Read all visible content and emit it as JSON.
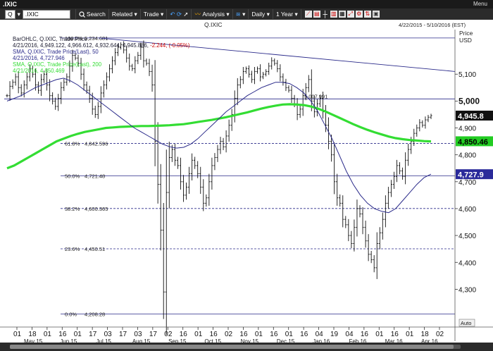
{
  "window": {
    "title": ".IXIC",
    "menu_label": "Menu"
  },
  "toolbar": {
    "symbol_prefix": "Q",
    "symbol_value": ".IXIC",
    "search_label": "Search",
    "related_label": "Related",
    "trade_label": "Trade",
    "analysis_label": "Analysis",
    "interval_label": "Daily",
    "range_label": "1 Year"
  },
  "chart": {
    "symbol_title": "Q.IXIC",
    "date_range": "4/22/2015 - 5/10/2016 (EST)",
    "price_header": "Price",
    "currency": "USD",
    "auto_label": "Auto",
    "legend": [
      {
        "text": "BarOHLC, Q.IXIC, Trade Price",
        "color": "#1a1a2e"
      },
      {
        "text": "4/21/2016, 4,949.122, 4,966.612, 4,932.644, 4,945.886, ",
        "color": "#1a1a2e",
        "change": "-2.244, (-0.05%)",
        "change_color": "#cc0000"
      },
      {
        "text": "SMA, Q.IXIC, Trade Price(Last), 50",
        "color": "#2a2a8a"
      },
      {
        "text": "4/21/2016, 4,727.946",
        "color": "#2a2a8a"
      },
      {
        "text": "SMA, Q.IXIC, Trade Price(Last), 200",
        "color": "#33dd33"
      },
      {
        "text": "4/21/2016, 4,850.469",
        "color": "#33dd33"
      }
    ],
    "fib_levels": [
      {
        "label": "100.0%",
        "price_text": "5,234.681",
        "price": 5234.681,
        "style": "solid"
      },
      {
        "label": "61.8%",
        "price_text": "4,842.596",
        "price": 4842.596,
        "style": "dashed"
      },
      {
        "label": "50.0%",
        "price_text": "4,721.48",
        "price": 4721.48,
        "style": "solid"
      },
      {
        "label": "38.2%",
        "price_text": "4,600.365",
        "price": 4600.365,
        "style": "dashed"
      },
      {
        "label": "23.6%",
        "price_text": "4,450.51",
        "price": 4450.51,
        "style": "dashed"
      },
      {
        "label": "0.0%",
        "price_text": "4,208.28",
        "price": 4208.28,
        "style": "solid"
      }
    ],
    "level_5000": {
      "price_text": "5,007.991",
      "price": 5007.991
    },
    "y_ticks": [
      {
        "label": "5,100",
        "value": 5100
      },
      {
        "label": "5,000",
        "value": 5000,
        "bold": true
      },
      {
        "label": "4,900",
        "value": 4900
      },
      {
        "label": "4,800",
        "value": 4800
      },
      {
        "label": "4,700",
        "value": 4700
      },
      {
        "label": "4,600",
        "value": 4600
      },
      {
        "label": "4,500",
        "value": 4500
      },
      {
        "label": "4,400",
        "value": 4400
      },
      {
        "label": "4,300",
        "value": 4300
      }
    ],
    "price_badges": [
      {
        "text": "4,945.8",
        "value": 4945.886,
        "bg": "#111111",
        "fg": "#ffffff"
      },
      {
        "text": "4,850.46",
        "value": 4850.469,
        "bg": "#22cc22",
        "fg": "#000000"
      },
      {
        "text": "4,727.9",
        "value": 4727.946,
        "bg": "#2a2a9a",
        "fg": "#ffffff"
      }
    ],
    "x_day_ticks": [
      "01",
      "18",
      "01",
      "16",
      "01",
      "17",
      "03",
      "17",
      "03",
      "17",
      "02",
      "16",
      "01",
      "16",
      "02",
      "16",
      "01",
      "16",
      "01",
      "16",
      "04",
      "19",
      "04",
      "16",
      "01",
      "16",
      "01",
      "18",
      "02"
    ],
    "x_month_labels": [
      "May 15",
      "Jun 15",
      "Jul 15",
      "Aug 15",
      "Sep 15",
      "Oct 15",
      "Nov 15",
      "Dec 15",
      "Jan 16",
      "Feb 16",
      "Mar 16",
      "Apr 16"
    ],
    "colors": {
      "bars": "#111111",
      "sma50": "#2a2a8a",
      "sma200": "#33dd33",
      "trendline": "#2a2a8a",
      "fib": "#2a2a8a"
    }
  },
  "chart_data": {
    "type": "bar",
    "title": "Q.IXIC",
    "series_names": [
      "BarOHLC, Q.IXIC, Trade Price",
      "SMA 50",
      "SMA 200"
    ],
    "ylim": [
      4170,
      5250
    ],
    "last_bar": {
      "date": "4/21/2016",
      "open": 4949.122,
      "high": 4966.612,
      "low": 4932.644,
      "close": 4945.886
    },
    "sma50_last": 4727.946,
    "sma200_last": 4850.469,
    "closes": [
      5020,
      5055,
      5070,
      5090,
      5050,
      5030,
      5060,
      5090,
      5120,
      5100,
      5060,
      5040,
      5080,
      5100,
      5060,
      5020,
      5000,
      4980,
      5010,
      5050,
      5070,
      5090,
      5130,
      5170,
      5160,
      5140,
      5100,
      5060,
      5040,
      5010,
      4970,
      4950,
      4980,
      5030,
      5060,
      5090,
      5120,
      5150,
      5180,
      5200,
      5210,
      5190,
      5160,
      5130,
      5120,
      5150,
      5170,
      5200,
      5150,
      5140,
      5110,
      5060,
      4850,
      4690,
      4520,
      4290,
      4660,
      4790,
      4820,
      4780,
      4760,
      4700,
      4650,
      4680,
      4730,
      4780,
      4760,
      4730,
      4680,
      4620,
      4640,
      4700,
      4760,
      4790,
      4820,
      4850,
      4830,
      4870,
      4910,
      4950,
      5010,
      5060,
      5080,
      5110,
      5120,
      5100,
      5080,
      5110,
      5120,
      5090,
      5100,
      5110,
      5130,
      5150,
      5140,
      5120,
      5090,
      5070,
      5050,
      5040,
      5010,
      4990,
      4950,
      4970,
      5020,
      5050,
      5080,
      5000,
      4960,
      4990,
      5010,
      4960,
      4910,
      4850,
      4800,
      4700,
      4640,
      4620,
      4560,
      4540,
      4500,
      4470,
      4530,
      4600,
      4580,
      4530,
      4480,
      4430,
      4410,
      4380,
      4470,
      4510,
      4560,
      4620,
      4660,
      4690,
      4720,
      4760,
      4740,
      4720,
      4780,
      4820,
      4850,
      4880,
      4900,
      4920,
      4910,
      4930,
      4940,
      4946
    ],
    "sma200": [
      4750,
      4760,
      4775,
      4790,
      4805,
      4820,
      4835,
      4850,
      4860,
      4870,
      4878,
      4885,
      4890,
      4895,
      4900,
      4902,
      4904,
      4905,
      4906,
      4907,
      4907,
      4908,
      4909,
      4910,
      4912,
      4914,
      4918,
      4922,
      4926,
      4930,
      4935,
      4940,
      4946,
      4952,
      4958,
      4965,
      4972,
      4978,
      4983,
      4987,
      4988,
      4987,
      4985,
      4980,
      4972,
      4962,
      4950,
      4938,
      4926,
      4914,
      4903,
      4893,
      4884,
      4876,
      4868,
      4862,
      4858,
      4855,
      4853,
      4851,
      4850
    ],
    "sma50": [
      5000,
      5010,
      5020,
      5035,
      5050,
      5060,
      5070,
      5080,
      5085,
      5075,
      5060,
      5040,
      5020,
      5000,
      4980,
      4960,
      4940,
      4920,
      4900,
      4885,
      4870,
      4855,
      4840,
      4830,
      4825,
      4828,
      4840,
      4860,
      4885,
      4910,
      4935,
      4960,
      4980,
      5000,
      5020,
      5035,
      5050,
      5060,
      5070,
      5070,
      5065,
      5050,
      5030,
      5000,
      4960,
      4910,
      4860,
      4800,
      4740,
      4690,
      4650,
      4620,
      4600,
      4590,
      4585,
      4600,
      4630,
      4660,
      4690,
      4715,
      4728
    ],
    "trendline": [
      [
        0,
        5234.681
      ],
      [
        1,
        5110
      ]
    ]
  }
}
